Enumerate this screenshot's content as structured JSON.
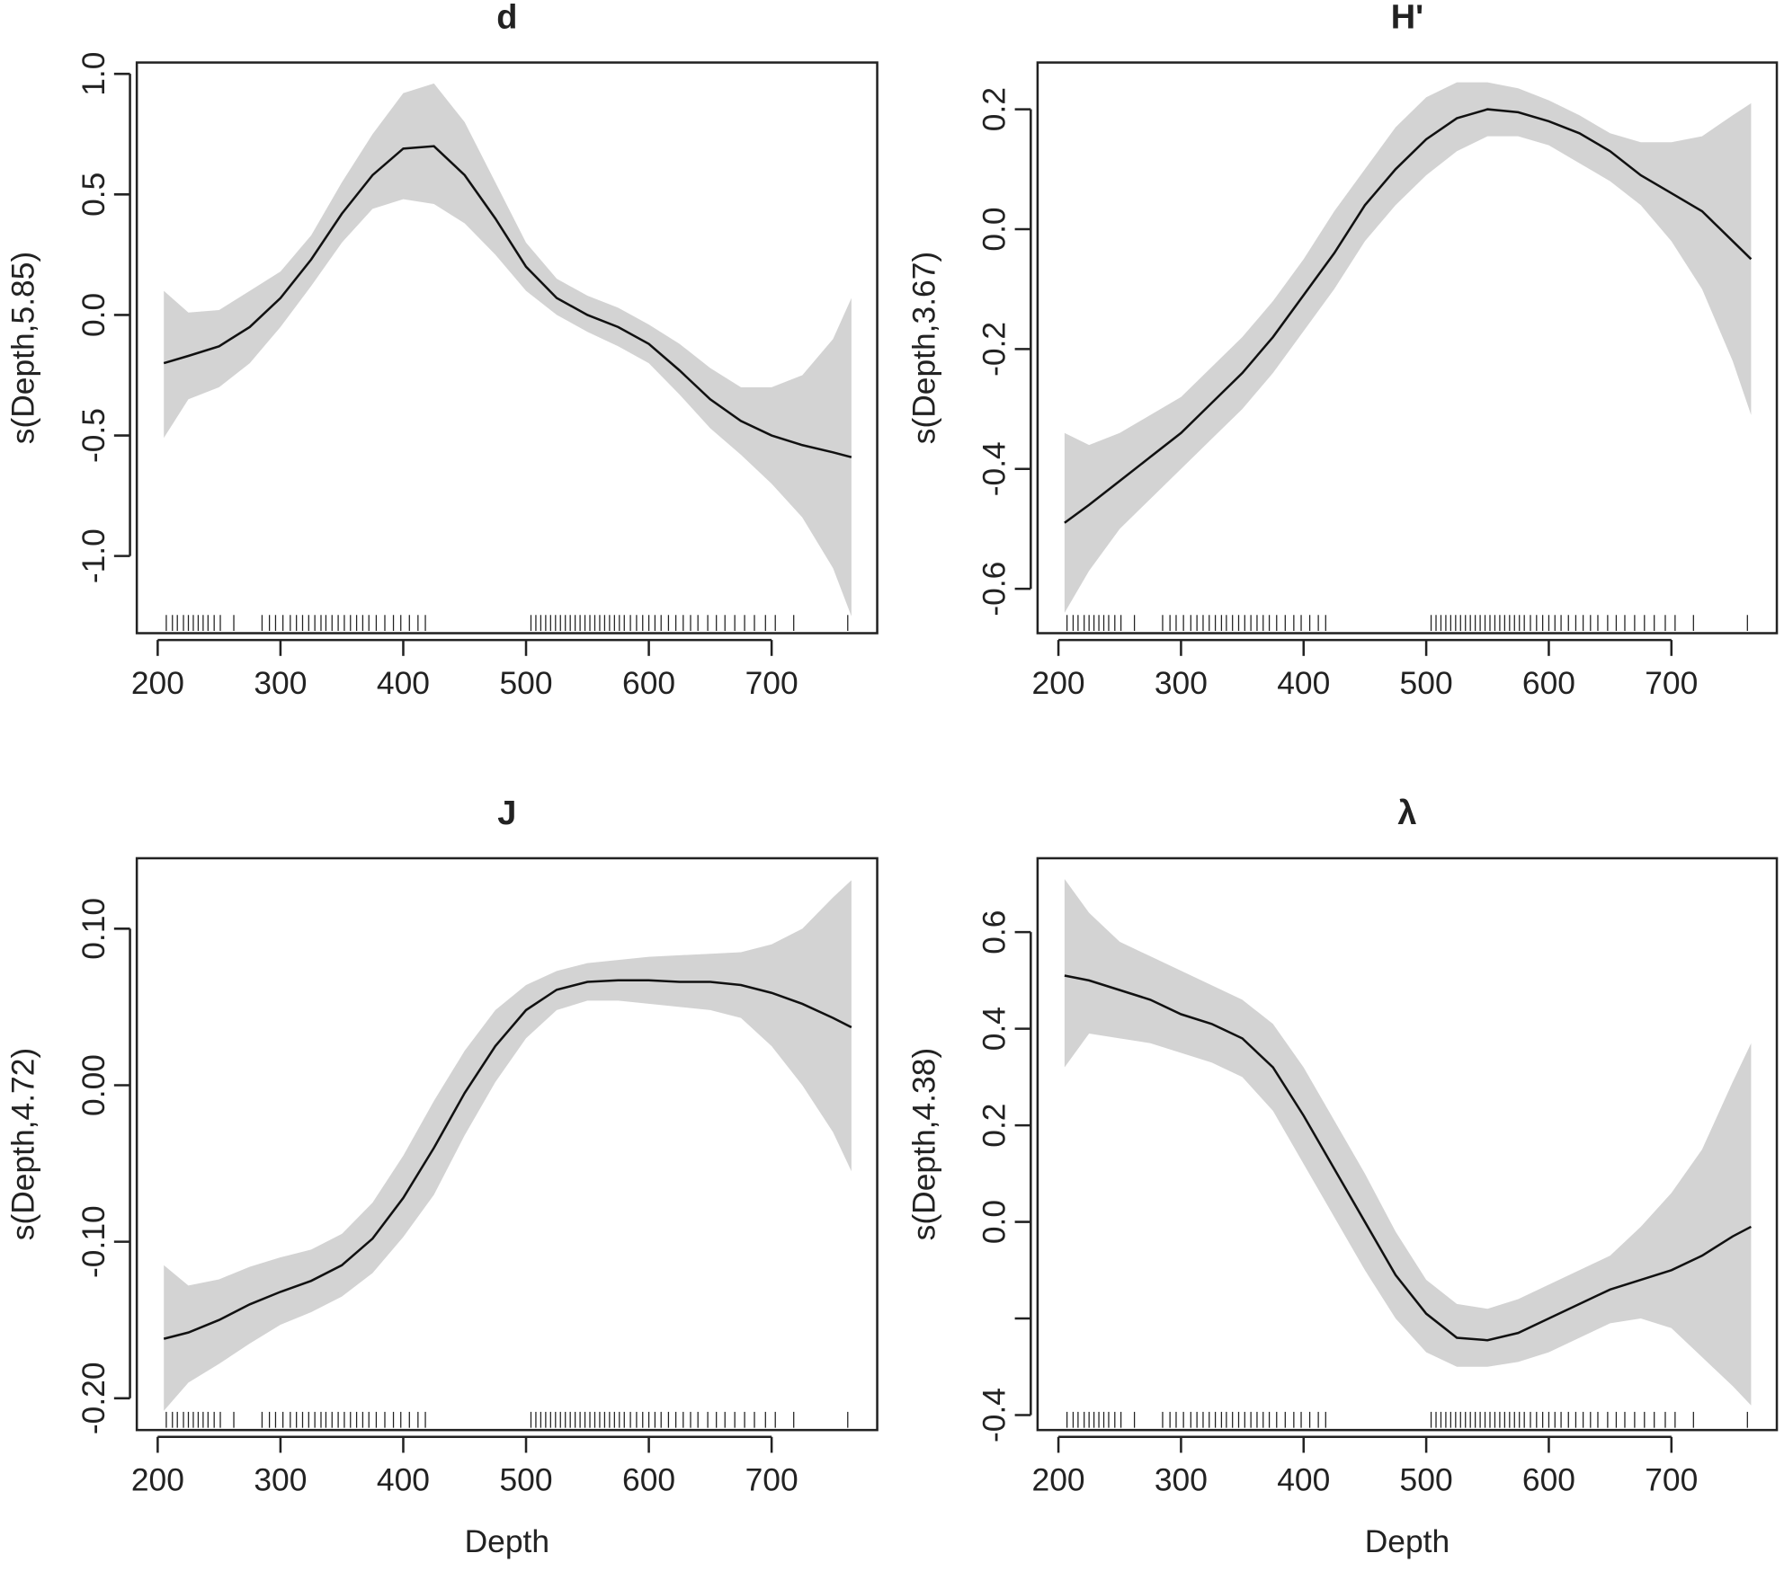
{
  "chart_data": [
    {
      "type": "line",
      "title": "d",
      "ylabel": "s(Depth,5.85)",
      "x": [
        205,
        225,
        250,
        275,
        300,
        325,
        350,
        375,
        400,
        425,
        450,
        475,
        500,
        525,
        550,
        575,
        600,
        625,
        650,
        675,
        700,
        725,
        750,
        765
      ],
      "values": [
        -0.2,
        -0.17,
        -0.13,
        -0.05,
        0.07,
        0.23,
        0.42,
        0.58,
        0.69,
        0.7,
        0.58,
        0.4,
        0.2,
        0.07,
        0.0,
        -0.05,
        -0.12,
        -0.23,
        -0.35,
        -0.44,
        -0.5,
        -0.54,
        -0.57,
        -0.59
      ],
      "upper": [
        0.1,
        0.01,
        0.02,
        0.1,
        0.18,
        0.33,
        0.55,
        0.75,
        0.92,
        0.96,
        0.8,
        0.55,
        0.3,
        0.15,
        0.08,
        0.03,
        -0.04,
        -0.12,
        -0.22,
        -0.3,
        -0.3,
        -0.25,
        -0.1,
        0.07
      ],
      "lower": [
        -0.51,
        -0.35,
        -0.3,
        -0.2,
        -0.05,
        0.12,
        0.3,
        0.44,
        0.48,
        0.46,
        0.38,
        0.25,
        0.1,
        0.0,
        -0.07,
        -0.13,
        -0.2,
        -0.33,
        -0.47,
        -0.58,
        -0.7,
        -0.84,
        -1.05,
        -1.25
      ],
      "rug": [
        207,
        212,
        216,
        221,
        225,
        229,
        233,
        237,
        241,
        246,
        251,
        262,
        285,
        291,
        296,
        302,
        308,
        313,
        318,
        323,
        328,
        333,
        337,
        342,
        347,
        352,
        357,
        362,
        367,
        372,
        378,
        385,
        392,
        398,
        405,
        412,
        418,
        504,
        508,
        512,
        516,
        520,
        524,
        528,
        532,
        536,
        540,
        544,
        548,
        552,
        556,
        560,
        564,
        568,
        572,
        576,
        580,
        585,
        590,
        595,
        600,
        605,
        610,
        616,
        622,
        628,
        634,
        640,
        648,
        655,
        662,
        670,
        678,
        686,
        695,
        703,
        718,
        762
      ],
      "xlim": [
        183,
        786
      ],
      "ylim": [
        -1.32,
        1.047
      ],
      "xticks": [
        200,
        300,
        400,
        500,
        600,
        700
      ],
      "yticks": [
        {
          "value": -1.0,
          "label": "-1.0"
        },
        {
          "value": -0.5,
          "label": "-0.5"
        },
        {
          "value": 0.0,
          "label": "0.0"
        },
        {
          "value": 0.5,
          "label": "0.5"
        },
        {
          "value": 1.0,
          "label": "1.0"
        }
      ],
      "color": "#111111",
      "band_color": "#d3d3d3"
    },
    {
      "type": "line",
      "title": "H'",
      "ylabel": "s(Depth,3.67)",
      "x": [
        205,
        225,
        250,
        275,
        300,
        325,
        350,
        375,
        400,
        425,
        450,
        475,
        500,
        525,
        550,
        575,
        600,
        625,
        650,
        675,
        700,
        725,
        750,
        765
      ],
      "values": [
        -0.49,
        -0.46,
        -0.42,
        -0.38,
        -0.34,
        -0.29,
        -0.24,
        -0.18,
        -0.11,
        -0.04,
        0.04,
        0.1,
        0.15,
        0.185,
        0.2,
        0.195,
        0.18,
        0.16,
        0.13,
        0.09,
        0.06,
        0.03,
        -0.02,
        -0.05
      ],
      "upper": [
        -0.34,
        -0.36,
        -0.34,
        -0.31,
        -0.28,
        -0.23,
        -0.18,
        -0.12,
        -0.05,
        0.03,
        0.1,
        0.17,
        0.22,
        0.245,
        0.245,
        0.235,
        0.215,
        0.19,
        0.16,
        0.145,
        0.145,
        0.155,
        0.19,
        0.21
      ],
      "lower": [
        -0.64,
        -0.57,
        -0.5,
        -0.45,
        -0.4,
        -0.35,
        -0.3,
        -0.24,
        -0.17,
        -0.1,
        -0.02,
        0.04,
        0.09,
        0.13,
        0.155,
        0.155,
        0.14,
        0.11,
        0.08,
        0.04,
        -0.02,
        -0.1,
        -0.22,
        -0.31
      ],
      "rug": [
        207,
        212,
        216,
        221,
        225,
        229,
        233,
        237,
        241,
        246,
        251,
        262,
        285,
        291,
        296,
        302,
        308,
        313,
        318,
        323,
        328,
        333,
        337,
        342,
        347,
        352,
        357,
        362,
        367,
        372,
        378,
        385,
        392,
        398,
        405,
        412,
        418,
        504,
        508,
        512,
        516,
        520,
        524,
        528,
        532,
        536,
        540,
        544,
        548,
        552,
        556,
        560,
        564,
        568,
        572,
        576,
        580,
        585,
        590,
        595,
        600,
        605,
        610,
        616,
        622,
        628,
        634,
        640,
        648,
        655,
        662,
        670,
        678,
        686,
        695,
        703,
        718,
        762
      ],
      "xlim": [
        183,
        786
      ],
      "ylim": [
        -0.674,
        0.278
      ],
      "xticks": [
        200,
        300,
        400,
        500,
        600,
        700
      ],
      "yticks": [
        {
          "value": -0.6,
          "label": "-0.6"
        },
        {
          "value": -0.4,
          "label": "-0.4"
        },
        {
          "value": -0.2,
          "label": "-0.2"
        },
        {
          "value": 0.0,
          "label": "0.0"
        },
        {
          "value": 0.2,
          "label": "0.2"
        }
      ],
      "color": "#111111",
      "band_color": "#d3d3d3"
    },
    {
      "type": "line",
      "title": "J",
      "ylabel": "s(Depth,4.72)",
      "xlabel": "Depth",
      "x": [
        205,
        225,
        250,
        275,
        300,
        325,
        350,
        375,
        400,
        425,
        450,
        475,
        500,
        525,
        550,
        575,
        600,
        625,
        650,
        675,
        700,
        725,
        750,
        765
      ],
      "values": [
        -0.162,
        -0.158,
        -0.15,
        -0.14,
        -0.132,
        -0.125,
        -0.115,
        -0.098,
        -0.072,
        -0.04,
        -0.005,
        0.025,
        0.048,
        0.061,
        0.066,
        0.067,
        0.067,
        0.066,
        0.066,
        0.064,
        0.059,
        0.052,
        0.043,
        0.037
      ],
      "upper": [
        -0.115,
        -0.128,
        -0.124,
        -0.116,
        -0.11,
        -0.105,
        -0.095,
        -0.075,
        -0.045,
        -0.01,
        0.022,
        0.048,
        0.064,
        0.073,
        0.078,
        0.08,
        0.082,
        0.083,
        0.084,
        0.085,
        0.09,
        0.1,
        0.12,
        0.131
      ],
      "lower": [
        -0.208,
        -0.19,
        -0.178,
        -0.165,
        -0.153,
        -0.145,
        -0.135,
        -0.12,
        -0.097,
        -0.07,
        -0.032,
        0.002,
        0.03,
        0.048,
        0.054,
        0.054,
        0.052,
        0.05,
        0.048,
        0.043,
        0.025,
        0.0,
        -0.03,
        -0.055
      ],
      "rug": [
        207,
        212,
        216,
        221,
        225,
        229,
        233,
        237,
        241,
        246,
        251,
        262,
        285,
        291,
        296,
        302,
        308,
        313,
        318,
        323,
        328,
        333,
        337,
        342,
        347,
        352,
        357,
        362,
        367,
        372,
        378,
        385,
        392,
        398,
        405,
        412,
        418,
        504,
        508,
        512,
        516,
        520,
        524,
        528,
        532,
        536,
        540,
        544,
        548,
        552,
        556,
        560,
        564,
        568,
        572,
        576,
        580,
        585,
        590,
        595,
        600,
        605,
        610,
        616,
        622,
        628,
        634,
        640,
        648,
        655,
        662,
        670,
        678,
        686,
        695,
        703,
        718,
        762
      ],
      "xlim": [
        183,
        786
      ],
      "ylim": [
        -0.2203,
        0.145
      ],
      "xticks": [
        200,
        300,
        400,
        500,
        600,
        700
      ],
      "yticks": [
        {
          "value": -0.2,
          "label": "-0.20"
        },
        {
          "value": -0.1,
          "label": "-0.10"
        },
        {
          "value": 0.0,
          "label": "0.00"
        },
        {
          "value": 0.1,
          "label": "0.10"
        }
      ],
      "color": "#111111",
      "band_color": "#d3d3d3"
    },
    {
      "type": "line",
      "title": "λ",
      "ylabel": "s(Depth,4.38)",
      "xlabel": "Depth",
      "x": [
        205,
        225,
        250,
        275,
        300,
        325,
        350,
        375,
        400,
        425,
        450,
        475,
        500,
        525,
        550,
        575,
        600,
        625,
        650,
        675,
        700,
        725,
        750,
        765
      ],
      "values": [
        0.51,
        0.5,
        0.48,
        0.46,
        0.43,
        0.41,
        0.38,
        0.32,
        0.22,
        0.11,
        0.0,
        -0.11,
        -0.19,
        -0.24,
        -0.245,
        -0.23,
        -0.2,
        -0.17,
        -0.14,
        -0.12,
        -0.1,
        -0.07,
        -0.03,
        -0.01
      ],
      "upper": [
        0.71,
        0.64,
        0.58,
        0.55,
        0.52,
        0.49,
        0.46,
        0.41,
        0.32,
        0.21,
        0.1,
        -0.02,
        -0.12,
        -0.17,
        -0.18,
        -0.16,
        -0.13,
        -0.1,
        -0.07,
        -0.01,
        0.06,
        0.15,
        0.29,
        0.37
      ],
      "lower": [
        0.32,
        0.39,
        0.38,
        0.37,
        0.35,
        0.33,
        0.3,
        0.23,
        0.12,
        0.01,
        -0.1,
        -0.2,
        -0.27,
        -0.3,
        -0.3,
        -0.29,
        -0.27,
        -0.24,
        -0.21,
        -0.2,
        -0.22,
        -0.28,
        -0.34,
        -0.38
      ],
      "rug": [
        207,
        212,
        216,
        221,
        225,
        229,
        233,
        237,
        241,
        246,
        251,
        262,
        285,
        291,
        296,
        302,
        308,
        313,
        318,
        323,
        328,
        333,
        337,
        342,
        347,
        352,
        357,
        362,
        367,
        372,
        378,
        385,
        392,
        398,
        405,
        412,
        418,
        504,
        508,
        512,
        516,
        520,
        524,
        528,
        532,
        536,
        540,
        544,
        548,
        552,
        556,
        560,
        564,
        568,
        572,
        576,
        580,
        585,
        590,
        595,
        600,
        605,
        610,
        616,
        622,
        628,
        634,
        640,
        648,
        655,
        662,
        670,
        678,
        686,
        695,
        703,
        718,
        762
      ],
      "xlim": [
        183,
        786
      ],
      "ylim": [
        -0.431,
        0.753
      ],
      "xticks": [
        200,
        300,
        400,
        500,
        600,
        700
      ],
      "yticks": [
        {
          "value": -0.4,
          "label": "-0.4"
        },
        {
          "value": -0.2,
          "label": null
        },
        {
          "value": 0.0,
          "label": "0.0"
        },
        {
          "value": 0.2,
          "label": "0.2"
        },
        {
          "value": 0.4,
          "label": "0.4"
        },
        {
          "value": 0.6,
          "label": "0.6"
        }
      ],
      "color": "#111111",
      "band_color": "#d3d3d3"
    }
  ]
}
